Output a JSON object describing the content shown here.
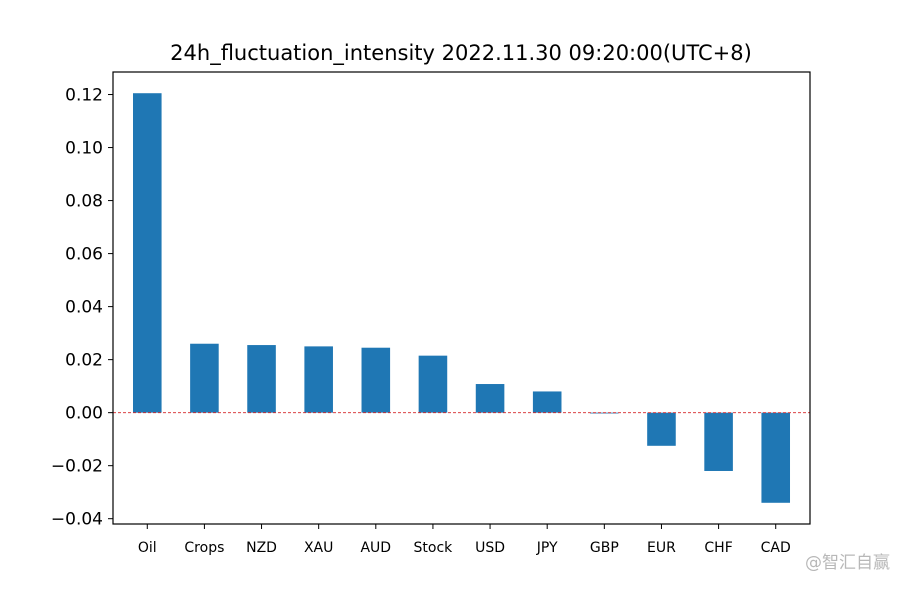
{
  "chart_data": {
    "type": "bar",
    "title": "24h_fluctuation_intensity 2022.11.30 09:20:00(UTC+8)",
    "xlabel": "",
    "ylabel": "",
    "categories": [
      "Oil",
      "Crops",
      "NZD",
      "XAU",
      "AUD",
      "Stock",
      "USD",
      "JPY",
      "GBP",
      "EUR",
      "CHF",
      "CAD"
    ],
    "values": [
      0.1205,
      0.026,
      0.0255,
      0.025,
      0.0245,
      0.0215,
      0.0108,
      0.008,
      -0.0003,
      -0.0125,
      -0.022,
      -0.034
    ],
    "ylim": [
      -0.042,
      0.1285
    ],
    "yticks": [
      "−0.04",
      "−0.02",
      "0.00",
      "0.02",
      "0.04",
      "0.06",
      "0.08",
      "0.10",
      "0.12"
    ],
    "ytick_values": [
      -0.04,
      -0.02,
      0,
      0.02,
      0.04,
      0.06,
      0.08,
      0.1,
      0.12
    ],
    "bar_color": "#1f77b4",
    "zero_line_color": "#d62728",
    "grid": false,
    "legend": "none"
  },
  "watermark": "@智汇自赢"
}
